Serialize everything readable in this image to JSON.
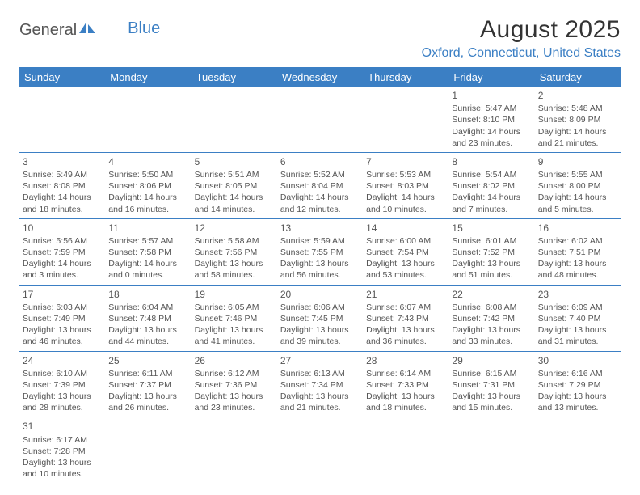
{
  "logo": {
    "general": "General",
    "blue": "Blue"
  },
  "title": "August 2025",
  "location": "Oxford, Connecticut, United States",
  "colors": {
    "accent": "#3b7fc4",
    "text": "#555555",
    "bg": "#ffffff"
  },
  "dayHeaders": [
    "Sunday",
    "Monday",
    "Tuesday",
    "Wednesday",
    "Thursday",
    "Friday",
    "Saturday"
  ],
  "weeks": [
    [
      null,
      null,
      null,
      null,
      null,
      {
        "day": "1",
        "sunrise": "Sunrise: 5:47 AM",
        "sunset": "Sunset: 8:10 PM",
        "daylight": "Daylight: 14 hours and 23 minutes."
      },
      {
        "day": "2",
        "sunrise": "Sunrise: 5:48 AM",
        "sunset": "Sunset: 8:09 PM",
        "daylight": "Daylight: 14 hours and 21 minutes."
      }
    ],
    [
      {
        "day": "3",
        "sunrise": "Sunrise: 5:49 AM",
        "sunset": "Sunset: 8:08 PM",
        "daylight": "Daylight: 14 hours and 18 minutes."
      },
      {
        "day": "4",
        "sunrise": "Sunrise: 5:50 AM",
        "sunset": "Sunset: 8:06 PM",
        "daylight": "Daylight: 14 hours and 16 minutes."
      },
      {
        "day": "5",
        "sunrise": "Sunrise: 5:51 AM",
        "sunset": "Sunset: 8:05 PM",
        "daylight": "Daylight: 14 hours and 14 minutes."
      },
      {
        "day": "6",
        "sunrise": "Sunrise: 5:52 AM",
        "sunset": "Sunset: 8:04 PM",
        "daylight": "Daylight: 14 hours and 12 minutes."
      },
      {
        "day": "7",
        "sunrise": "Sunrise: 5:53 AM",
        "sunset": "Sunset: 8:03 PM",
        "daylight": "Daylight: 14 hours and 10 minutes."
      },
      {
        "day": "8",
        "sunrise": "Sunrise: 5:54 AM",
        "sunset": "Sunset: 8:02 PM",
        "daylight": "Daylight: 14 hours and 7 minutes."
      },
      {
        "day": "9",
        "sunrise": "Sunrise: 5:55 AM",
        "sunset": "Sunset: 8:00 PM",
        "daylight": "Daylight: 14 hours and 5 minutes."
      }
    ],
    [
      {
        "day": "10",
        "sunrise": "Sunrise: 5:56 AM",
        "sunset": "Sunset: 7:59 PM",
        "daylight": "Daylight: 14 hours and 3 minutes."
      },
      {
        "day": "11",
        "sunrise": "Sunrise: 5:57 AM",
        "sunset": "Sunset: 7:58 PM",
        "daylight": "Daylight: 14 hours and 0 minutes."
      },
      {
        "day": "12",
        "sunrise": "Sunrise: 5:58 AM",
        "sunset": "Sunset: 7:56 PM",
        "daylight": "Daylight: 13 hours and 58 minutes."
      },
      {
        "day": "13",
        "sunrise": "Sunrise: 5:59 AM",
        "sunset": "Sunset: 7:55 PM",
        "daylight": "Daylight: 13 hours and 56 minutes."
      },
      {
        "day": "14",
        "sunrise": "Sunrise: 6:00 AM",
        "sunset": "Sunset: 7:54 PM",
        "daylight": "Daylight: 13 hours and 53 minutes."
      },
      {
        "day": "15",
        "sunrise": "Sunrise: 6:01 AM",
        "sunset": "Sunset: 7:52 PM",
        "daylight": "Daylight: 13 hours and 51 minutes."
      },
      {
        "day": "16",
        "sunrise": "Sunrise: 6:02 AM",
        "sunset": "Sunset: 7:51 PM",
        "daylight": "Daylight: 13 hours and 48 minutes."
      }
    ],
    [
      {
        "day": "17",
        "sunrise": "Sunrise: 6:03 AM",
        "sunset": "Sunset: 7:49 PM",
        "daylight": "Daylight: 13 hours and 46 minutes."
      },
      {
        "day": "18",
        "sunrise": "Sunrise: 6:04 AM",
        "sunset": "Sunset: 7:48 PM",
        "daylight": "Daylight: 13 hours and 44 minutes."
      },
      {
        "day": "19",
        "sunrise": "Sunrise: 6:05 AM",
        "sunset": "Sunset: 7:46 PM",
        "daylight": "Daylight: 13 hours and 41 minutes."
      },
      {
        "day": "20",
        "sunrise": "Sunrise: 6:06 AM",
        "sunset": "Sunset: 7:45 PM",
        "daylight": "Daylight: 13 hours and 39 minutes."
      },
      {
        "day": "21",
        "sunrise": "Sunrise: 6:07 AM",
        "sunset": "Sunset: 7:43 PM",
        "daylight": "Daylight: 13 hours and 36 minutes."
      },
      {
        "day": "22",
        "sunrise": "Sunrise: 6:08 AM",
        "sunset": "Sunset: 7:42 PM",
        "daylight": "Daylight: 13 hours and 33 minutes."
      },
      {
        "day": "23",
        "sunrise": "Sunrise: 6:09 AM",
        "sunset": "Sunset: 7:40 PM",
        "daylight": "Daylight: 13 hours and 31 minutes."
      }
    ],
    [
      {
        "day": "24",
        "sunrise": "Sunrise: 6:10 AM",
        "sunset": "Sunset: 7:39 PM",
        "daylight": "Daylight: 13 hours and 28 minutes."
      },
      {
        "day": "25",
        "sunrise": "Sunrise: 6:11 AM",
        "sunset": "Sunset: 7:37 PM",
        "daylight": "Daylight: 13 hours and 26 minutes."
      },
      {
        "day": "26",
        "sunrise": "Sunrise: 6:12 AM",
        "sunset": "Sunset: 7:36 PM",
        "daylight": "Daylight: 13 hours and 23 minutes."
      },
      {
        "day": "27",
        "sunrise": "Sunrise: 6:13 AM",
        "sunset": "Sunset: 7:34 PM",
        "daylight": "Daylight: 13 hours and 21 minutes."
      },
      {
        "day": "28",
        "sunrise": "Sunrise: 6:14 AM",
        "sunset": "Sunset: 7:33 PM",
        "daylight": "Daylight: 13 hours and 18 minutes."
      },
      {
        "day": "29",
        "sunrise": "Sunrise: 6:15 AM",
        "sunset": "Sunset: 7:31 PM",
        "daylight": "Daylight: 13 hours and 15 minutes."
      },
      {
        "day": "30",
        "sunrise": "Sunrise: 6:16 AM",
        "sunset": "Sunset: 7:29 PM",
        "daylight": "Daylight: 13 hours and 13 minutes."
      }
    ],
    [
      {
        "day": "31",
        "sunrise": "Sunrise: 6:17 AM",
        "sunset": "Sunset: 7:28 PM",
        "daylight": "Daylight: 13 hours and 10 minutes."
      },
      null,
      null,
      null,
      null,
      null,
      null
    ]
  ]
}
